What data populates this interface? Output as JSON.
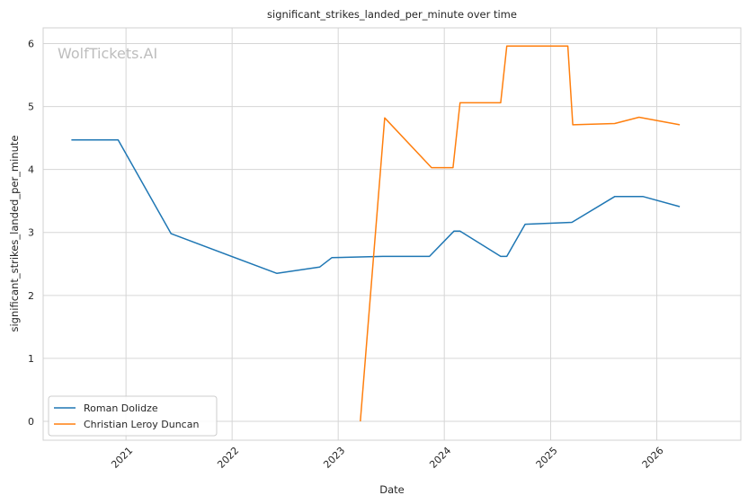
{
  "chart_data": {
    "type": "line",
    "title": "significant_strikes_landed_per_minute over time",
    "xlabel": "Date",
    "ylabel": "significant_strikes_landed_per_minute",
    "watermark": "WolfTickets.AI",
    "x_ticks": [
      "2021",
      "2022",
      "2023",
      "2024",
      "2025",
      "2026"
    ],
    "y_ticks": [
      "0",
      "1",
      "2",
      "3",
      "4",
      "5",
      "6"
    ],
    "xlim": [
      "2020-03-22",
      "2026-10-17"
    ],
    "ylim": [
      -0.3,
      6.25
    ],
    "grid": true,
    "legend_position": "lower-left",
    "series": [
      {
        "name": "Roman Dolidze",
        "color": "#1f77b4",
        "points": [
          [
            "2020-06-27",
            4.47
          ],
          [
            "2020-12-05",
            4.47
          ],
          [
            "2021-06-05",
            2.98
          ],
          [
            "2022-06-04",
            2.35
          ],
          [
            "2022-10-29",
            2.45
          ],
          [
            "2022-12-10",
            2.6
          ],
          [
            "2023-06-03",
            2.62
          ],
          [
            "2023-11-11",
            2.62
          ],
          [
            "2024-02-03",
            3.02
          ],
          [
            "2024-02-24",
            3.02
          ],
          [
            "2024-07-13",
            2.62
          ],
          [
            "2024-08-03",
            2.62
          ],
          [
            "2024-10-05",
            3.13
          ],
          [
            "2025-03-15",
            3.16
          ],
          [
            "2025-08-09",
            3.57
          ],
          [
            "2025-11-15",
            3.57
          ],
          [
            "2026-03-21",
            3.41
          ]
        ]
      },
      {
        "name": "Christian Leroy Duncan",
        "color": "#ff7f0e",
        "points": [
          [
            "2023-03-18",
            0.0
          ],
          [
            "2023-06-10",
            4.82
          ],
          [
            "2023-11-18",
            4.03
          ],
          [
            "2024-01-31",
            4.03
          ],
          [
            "2024-02-24",
            5.06
          ],
          [
            "2024-07-13",
            5.06
          ],
          [
            "2024-08-03",
            5.96
          ],
          [
            "2025-03-01",
            5.96
          ],
          [
            "2025-03-18",
            4.71
          ],
          [
            "2025-08-09",
            4.73
          ],
          [
            "2025-11-01",
            4.83
          ],
          [
            "2026-03-21",
            4.71
          ]
        ]
      }
    ]
  }
}
